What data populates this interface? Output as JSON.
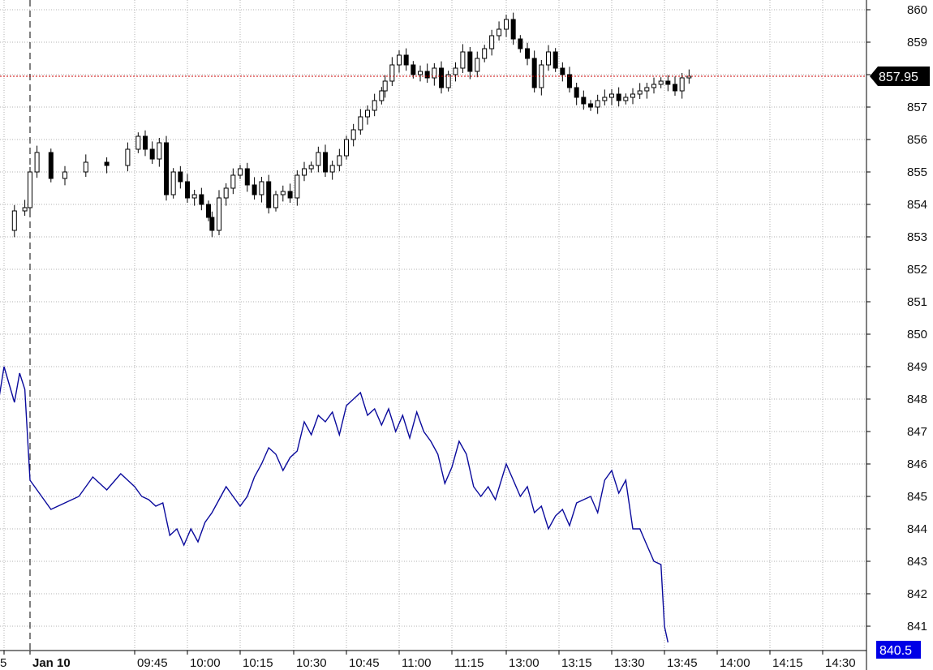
{
  "colors": {
    "background": "#ffffff",
    "grid": "#b0b0b0",
    "candle_up_fill": "#ffffff",
    "candle_down_fill": "#000000",
    "candle_outline": "#000000",
    "overlay_line": "#0a0a9c",
    "price_tag_black": "#000000",
    "price_tag_blue": "#0000e6",
    "current_price_line": "#cc0000"
  },
  "chart_data": {
    "type": "candlestick",
    "title": "",
    "xlabel": "",
    "ylabel": "",
    "ylim": [
      840.5,
      860.25
    ],
    "grid": true,
    "axis_side": "right",
    "y_ticks": [
      "860",
      "859",
      "858",
      "857",
      "856",
      "855",
      "854",
      "853",
      "852",
      "851",
      "850",
      "849",
      "848",
      "847",
      "846",
      "845",
      "844",
      "843",
      "842",
      "841"
    ],
    "x_ticks": [
      {
        "label": "5",
        "time": "09:25"
      },
      {
        "label": "Jan 10",
        "time": "09:30",
        "session_start": true
      },
      {
        "label": "09:45",
        "time": "09:45"
      },
      {
        "label": "10:00",
        "time": "10:00"
      },
      {
        "label": "10:15",
        "time": "10:15"
      },
      {
        "label": "10:30",
        "time": "10:30"
      },
      {
        "label": "10:45",
        "time": "10:45"
      },
      {
        "label": "11:00",
        "time": "11:00"
      },
      {
        "label": "11:15",
        "time": "11:15"
      },
      {
        "label": "13:00",
        "time": "13:00"
      },
      {
        "label": "13:15",
        "time": "13:15"
      },
      {
        "label": "13:30",
        "time": "13:30"
      },
      {
        "label": "13:45",
        "time": "13:45"
      },
      {
        "label": "14:00",
        "time": "14:00"
      },
      {
        "label": "14:15",
        "time": "14:15"
      },
      {
        "label": "14:30",
        "time": "14:30"
      }
    ],
    "price_series": {
      "name": "",
      "last_value": "857.95",
      "close_path": [
        [
          "09:24",
          853.2
        ],
        [
          "09:27",
          853.8
        ],
        [
          "09:29",
          853.9
        ],
        [
          "09:30",
          855.0
        ],
        [
          "09:31",
          855.6
        ],
        [
          "09:33",
          854.8
        ],
        [
          "09:35",
          855.0
        ],
        [
          "09:38",
          855.3
        ],
        [
          "09:41",
          855.2
        ],
        [
          "09:44",
          855.7
        ],
        [
          "09:46",
          856.1
        ],
        [
          "09:48",
          855.7
        ],
        [
          "09:50",
          855.4
        ],
        [
          "09:52",
          855.9
        ],
        [
          "09:54",
          854.3
        ],
        [
          "09:56",
          855.0
        ],
        [
          "09:58",
          854.7
        ],
        [
          "10:00",
          854.2
        ],
        [
          "10:02",
          854.3
        ],
        [
          "10:04",
          854.0
        ],
        [
          "10:06",
          853.6
        ],
        [
          "10:07",
          853.2
        ],
        [
          "10:09",
          854.2
        ],
        [
          "10:11",
          854.5
        ],
        [
          "10:13",
          854.9
        ],
        [
          "10:15",
          855.1
        ],
        [
          "10:17",
          854.6
        ],
        [
          "10:19",
          854.3
        ],
        [
          "10:21",
          854.7
        ],
        [
          "10:23",
          853.9
        ],
        [
          "10:25",
          854.3
        ],
        [
          "10:27",
          854.4
        ],
        [
          "10:29",
          854.2
        ],
        [
          "10:31",
          854.9
        ],
        [
          "10:33",
          855.1
        ],
        [
          "10:35",
          855.2
        ],
        [
          "10:37",
          855.6
        ],
        [
          "10:39",
          855.0
        ],
        [
          "10:41",
          855.2
        ],
        [
          "10:43",
          855.5
        ],
        [
          "10:45",
          856.0
        ],
        [
          "10:47",
          856.3
        ],
        [
          "10:49",
          856.7
        ],
        [
          "10:51",
          856.9
        ],
        [
          "10:53",
          857.2
        ],
        [
          "10:55",
          857.5
        ],
        [
          "10:56",
          857.8
        ],
        [
          "10:58",
          858.3
        ],
        [
          "11:00",
          858.6
        ],
        [
          "11:02",
          858.3
        ],
        [
          "11:04",
          858.0
        ],
        [
          "11:06",
          858.1
        ],
        [
          "11:08",
          857.9
        ],
        [
          "11:10",
          858.2
        ],
        [
          "11:12",
          857.6
        ],
        [
          "11:14",
          858.0
        ],
        [
          "11:16",
          858.2
        ],
        [
          "11:18",
          858.7
        ],
        [
          "11:20",
          858.1
        ],
        [
          "11:22",
          858.5
        ],
        [
          "11:24",
          858.8
        ],
        [
          "11:26",
          859.2
        ],
        [
          "11:28",
          859.4
        ],
        [
          "13:00",
          859.7
        ],
        [
          "13:02",
          859.1
        ],
        [
          "13:04",
          858.8
        ],
        [
          "13:06",
          858.5
        ],
        [
          "13:08",
          857.6
        ],
        [
          "13:10",
          858.3
        ],
        [
          "13:12",
          858.7
        ],
        [
          "13:14",
          858.2
        ],
        [
          "13:16",
          858.0
        ],
        [
          "13:18",
          857.6
        ],
        [
          "13:20",
          857.3
        ],
        [
          "13:22",
          857.1
        ],
        [
          "13:24",
          857.0
        ],
        [
          "13:26",
          857.2
        ],
        [
          "13:28",
          857.3
        ],
        [
          "13:30",
          857.4
        ],
        [
          "13:32",
          857.2
        ],
        [
          "13:34",
          857.3
        ],
        [
          "13:36",
          857.4
        ],
        [
          "13:38",
          857.5
        ],
        [
          "13:40",
          857.6
        ],
        [
          "13:42",
          857.7
        ],
        [
          "13:44",
          857.8
        ],
        [
          "13:46",
          857.7
        ],
        [
          "13:48",
          857.5
        ],
        [
          "13:50",
          857.9
        ],
        [
          "13:52",
          857.95
        ]
      ]
    },
    "overlay_series": {
      "name": "",
      "last_value": "840.5",
      "points": [
        [
          "09:24",
          848.0
        ],
        [
          "09:25",
          849.0
        ],
        [
          "09:27",
          847.9
        ],
        [
          "09:28",
          848.8
        ],
        [
          "09:29",
          848.3
        ],
        [
          "09:30",
          845.5
        ],
        [
          "09:31",
          845.2
        ],
        [
          "09:33",
          844.6
        ],
        [
          "09:35",
          844.8
        ],
        [
          "09:37",
          845.0
        ],
        [
          "09:39",
          845.6
        ],
        [
          "09:41",
          845.2
        ],
        [
          "09:43",
          845.7
        ],
        [
          "09:45",
          845.3
        ],
        [
          "09:47",
          845.0
        ],
        [
          "09:49",
          844.9
        ],
        [
          "09:51",
          844.7
        ],
        [
          "09:53",
          844.8
        ],
        [
          "09:55",
          843.8
        ],
        [
          "09:57",
          844.0
        ],
        [
          "09:59",
          843.5
        ],
        [
          "10:01",
          844.0
        ],
        [
          "10:03",
          843.6
        ],
        [
          "10:05",
          844.2
        ],
        [
          "10:07",
          844.5
        ],
        [
          "10:09",
          844.9
        ],
        [
          "10:11",
          845.3
        ],
        [
          "10:13",
          845.0
        ],
        [
          "10:15",
          844.7
        ],
        [
          "10:17",
          845.0
        ],
        [
          "10:19",
          845.6
        ],
        [
          "10:21",
          846.0
        ],
        [
          "10:23",
          846.5
        ],
        [
          "10:25",
          846.3
        ],
        [
          "10:27",
          845.8
        ],
        [
          "10:29",
          846.2
        ],
        [
          "10:31",
          846.4
        ],
        [
          "10:33",
          847.3
        ],
        [
          "10:35",
          846.9
        ],
        [
          "10:37",
          847.5
        ],
        [
          "10:39",
          847.3
        ],
        [
          "10:41",
          847.6
        ],
        [
          "10:43",
          846.9
        ],
        [
          "10:45",
          847.8
        ],
        [
          "10:47",
          848.0
        ],
        [
          "10:49",
          848.2
        ],
        [
          "10:51",
          847.5
        ],
        [
          "10:53",
          847.7
        ],
        [
          "10:55",
          847.2
        ],
        [
          "10:57",
          847.7
        ],
        [
          "10:59",
          847.0
        ],
        [
          "11:01",
          847.5
        ],
        [
          "11:03",
          846.8
        ],
        [
          "11:05",
          847.6
        ],
        [
          "11:07",
          847.0
        ],
        [
          "11:09",
          846.7
        ],
        [
          "11:11",
          846.3
        ],
        [
          "11:13",
          845.4
        ],
        [
          "11:15",
          845.9
        ],
        [
          "11:17",
          846.7
        ],
        [
          "11:19",
          846.3
        ],
        [
          "11:21",
          845.3
        ],
        [
          "11:23",
          845.0
        ],
        [
          "11:25",
          845.3
        ],
        [
          "11:27",
          844.9
        ],
        [
          "13:00",
          846.0
        ],
        [
          "13:02",
          845.5
        ],
        [
          "13:04",
          845.0
        ],
        [
          "13:06",
          845.3
        ],
        [
          "13:08",
          844.5
        ],
        [
          "13:10",
          844.7
        ],
        [
          "13:12",
          844.0
        ],
        [
          "13:14",
          844.4
        ],
        [
          "13:16",
          844.6
        ],
        [
          "13:18",
          844.1
        ],
        [
          "13:20",
          844.8
        ],
        [
          "13:22",
          844.9
        ],
        [
          "13:24",
          845.0
        ],
        [
          "13:26",
          844.5
        ],
        [
          "13:28",
          845.5
        ],
        [
          "13:30",
          845.8
        ],
        [
          "13:32",
          845.1
        ],
        [
          "13:34",
          845.5
        ],
        [
          "13:36",
          844.0
        ],
        [
          "13:38",
          844.0
        ],
        [
          "13:40",
          843.5
        ],
        [
          "13:42",
          843.0
        ],
        [
          "13:44",
          842.9
        ],
        [
          "13:45",
          841.0
        ],
        [
          "13:46",
          840.5
        ]
      ]
    }
  }
}
